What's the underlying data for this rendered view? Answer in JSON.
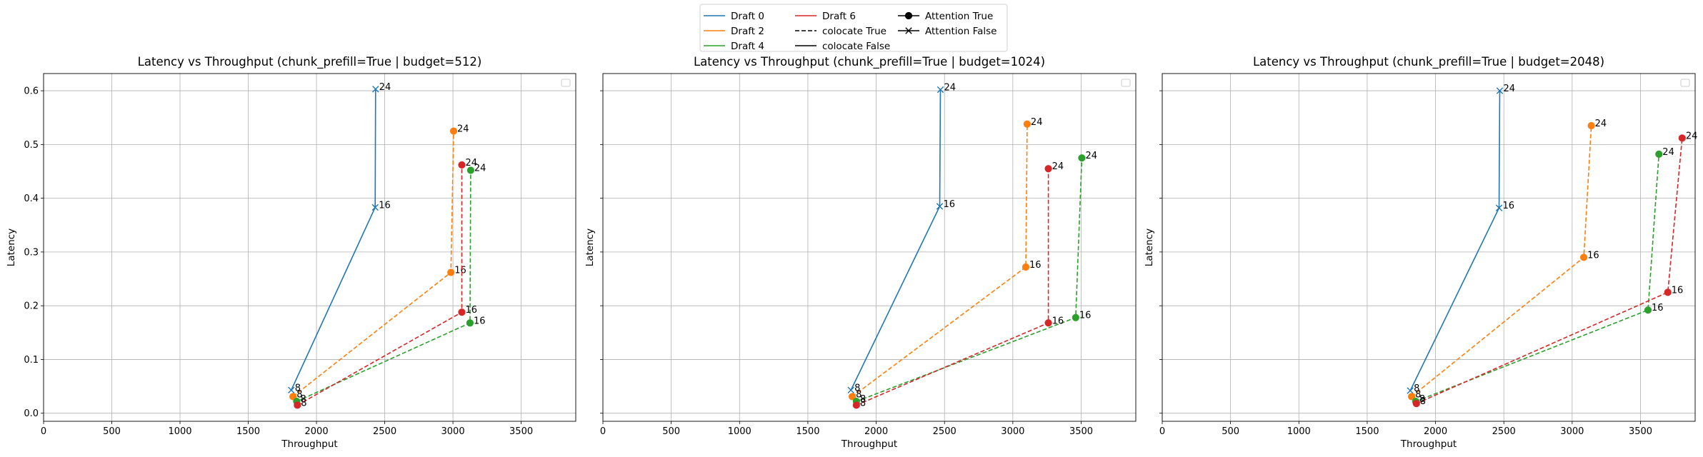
{
  "legend": {
    "items": [
      {
        "label": "Draft 0",
        "color": "#1f77b4",
        "style": "solid",
        "marker": "none"
      },
      {
        "label": "Draft 2",
        "color": "#ff7f0e",
        "style": "solid",
        "marker": "none"
      },
      {
        "label": "Draft 4",
        "color": "#2ca02c",
        "style": "solid",
        "marker": "none"
      },
      {
        "label": "Draft 6",
        "color": "#d62728",
        "style": "solid",
        "marker": "none"
      },
      {
        "label": "colocate True",
        "color": "#000000",
        "style": "dashed",
        "marker": "none"
      },
      {
        "label": "colocate False",
        "color": "#000000",
        "style": "solid",
        "marker": "none"
      },
      {
        "label": "Attention True",
        "color": "#000000",
        "style": "solid",
        "marker": "circle"
      },
      {
        "label": "Attention False",
        "color": "#000000",
        "style": "solid",
        "marker": "x"
      }
    ]
  },
  "chart_data": [
    {
      "type": "line",
      "title": "Latency vs Throughput (chunk_prefill=True | budget=512)",
      "xlabel": "Throughput",
      "ylabel": "Latency",
      "xlim": [
        0,
        3900
      ],
      "ylim": [
        -0.015,
        0.632
      ],
      "xticks": [
        0,
        500,
        1000,
        1500,
        2000,
        2500,
        3000,
        3500
      ],
      "yticks": [
        0.0,
        0.1,
        0.2,
        0.3,
        0.4,
        0.5,
        0.6
      ],
      "grid": true,
      "series": [
        {
          "name": "Draft 0",
          "color": "#1f77b4",
          "dashed": false,
          "marker": "x",
          "points": [
            {
              "x": 1815,
              "y": 0.043,
              "label": "8"
            },
            {
              "x": 2430,
              "y": 0.383,
              "label": "16"
            },
            {
              "x": 2433,
              "y": 0.603,
              "label": "24"
            }
          ]
        },
        {
          "name": "Draft 2",
          "color": "#ff7f0e",
          "dashed": true,
          "marker": "circle",
          "points": [
            {
              "x": 1828,
              "y": 0.031,
              "label": "8"
            },
            {
              "x": 2985,
              "y": 0.262,
              "label": "16"
            },
            {
              "x": 3005,
              "y": 0.525,
              "label": "24"
            }
          ]
        },
        {
          "name": "Draft 4",
          "color": "#2ca02c",
          "dashed": true,
          "marker": "circle",
          "points": [
            {
              "x": 1855,
              "y": 0.022,
              "label": "8"
            },
            {
              "x": 3125,
              "y": 0.168,
              "label": "16"
            },
            {
              "x": 3130,
              "y": 0.452,
              "label": "24"
            }
          ]
        },
        {
          "name": "Draft 6",
          "color": "#d62728",
          "dashed": true,
          "marker": "circle",
          "points": [
            {
              "x": 1860,
              "y": 0.015,
              "label": "8"
            },
            {
              "x": 3065,
              "y": 0.188,
              "label": "16"
            },
            {
              "x": 3065,
              "y": 0.462,
              "label": "24"
            }
          ]
        }
      ]
    },
    {
      "type": "line",
      "title": "Latency vs Throughput (chunk_prefill=True | budget=1024)",
      "xlabel": "Throughput",
      "ylabel": "Latency",
      "xlim": [
        0,
        3900
      ],
      "ylim": [
        -0.015,
        0.632
      ],
      "xticks": [
        0,
        500,
        1000,
        1500,
        2000,
        2500,
        3000,
        3500
      ],
      "yticks": [
        0.0,
        0.1,
        0.2,
        0.3,
        0.4,
        0.5,
        0.6
      ],
      "grid": true,
      "series": [
        {
          "name": "Draft 0",
          "color": "#1f77b4",
          "dashed": false,
          "marker": "x",
          "points": [
            {
              "x": 1815,
              "y": 0.043,
              "label": "8"
            },
            {
              "x": 2465,
              "y": 0.385,
              "label": "16"
            },
            {
              "x": 2470,
              "y": 0.602,
              "label": "24"
            }
          ]
        },
        {
          "name": "Draft 2",
          "color": "#ff7f0e",
          "dashed": true,
          "marker": "circle",
          "points": [
            {
              "x": 1825,
              "y": 0.031,
              "label": "8"
            },
            {
              "x": 3095,
              "y": 0.272,
              "label": "16"
            },
            {
              "x": 3105,
              "y": 0.538,
              "label": "24"
            }
          ]
        },
        {
          "name": "Draft 4",
          "color": "#2ca02c",
          "dashed": true,
          "marker": "circle",
          "points": [
            {
              "x": 1855,
              "y": 0.022,
              "label": "8"
            },
            {
              "x": 3460,
              "y": 0.178,
              "label": "16"
            },
            {
              "x": 3505,
              "y": 0.475,
              "label": "24"
            }
          ]
        },
        {
          "name": "Draft 6",
          "color": "#d62728",
          "dashed": true,
          "marker": "circle",
          "points": [
            {
              "x": 1855,
              "y": 0.015,
              "label": "8"
            },
            {
              "x": 3260,
              "y": 0.168,
              "label": "16"
            },
            {
              "x": 3260,
              "y": 0.455,
              "label": "24"
            }
          ]
        }
      ]
    },
    {
      "type": "line",
      "title": "Latency vs Throughput (chunk_prefill=True | budget=2048)",
      "xlabel": "Throughput",
      "ylabel": "Latency",
      "xlim": [
        0,
        3900
      ],
      "ylim": [
        -0.015,
        0.632
      ],
      "xticks": [
        0,
        500,
        1000,
        1500,
        2000,
        2500,
        3000,
        3500
      ],
      "yticks": [
        0.0,
        0.1,
        0.2,
        0.3,
        0.4,
        0.5,
        0.6
      ],
      "grid": true,
      "series": [
        {
          "name": "Draft 0",
          "color": "#1f77b4",
          "dashed": false,
          "marker": "x",
          "points": [
            {
              "x": 1815,
              "y": 0.042,
              "label": "8"
            },
            {
              "x": 2465,
              "y": 0.382,
              "label": "16"
            },
            {
              "x": 2470,
              "y": 0.6,
              "label": "24"
            }
          ]
        },
        {
          "name": "Draft 2",
          "color": "#ff7f0e",
          "dashed": true,
          "marker": "circle",
          "points": [
            {
              "x": 1825,
              "y": 0.031,
              "label": "8"
            },
            {
              "x": 3085,
              "y": 0.29,
              "label": "16"
            },
            {
              "x": 3140,
              "y": 0.535,
              "label": "24"
            }
          ]
        },
        {
          "name": "Draft 4",
          "color": "#2ca02c",
          "dashed": true,
          "marker": "circle",
          "points": [
            {
              "x": 1855,
              "y": 0.022,
              "label": "8"
            },
            {
              "x": 3555,
              "y": 0.192,
              "label": "16"
            },
            {
              "x": 3635,
              "y": 0.482,
              "label": "24"
            }
          ]
        },
        {
          "name": "Draft 6",
          "color": "#d62728",
          "dashed": true,
          "marker": "circle",
          "points": [
            {
              "x": 1860,
              "y": 0.018,
              "label": "8"
            },
            {
              "x": 3700,
              "y": 0.225,
              "label": "16"
            },
            {
              "x": 3805,
              "y": 0.512,
              "label": "24"
            }
          ]
        }
      ]
    }
  ]
}
